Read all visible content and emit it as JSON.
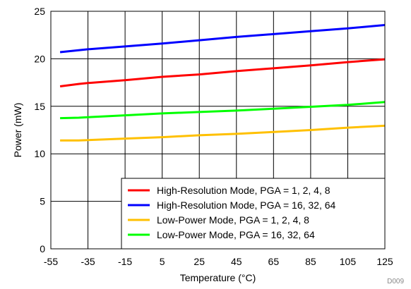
{
  "chart_data": {
    "type": "line",
    "title": "",
    "xlabel": "Temperature (°C)",
    "ylabel": "Power (mW)",
    "xlim": [
      -55,
      125
    ],
    "ylim": [
      0,
      25
    ],
    "x_ticks": [
      "-55",
      "-35",
      "-15",
      "5",
      "25",
      "45",
      "65",
      "85",
      "105",
      "125"
    ],
    "y_ticks": [
      "0",
      "5",
      "10",
      "15",
      "20",
      "25"
    ],
    "grid": true,
    "legend_position": "bottom-right",
    "figure_id": "D009",
    "series": [
      {
        "name": "High-Resolution Mode, PGA = 1, 2, 4, 8",
        "color": "#ff0000",
        "x": [
          -50,
          -40,
          -35,
          -15,
          5,
          25,
          45,
          65,
          85,
          105,
          125
        ],
        "y": [
          17.1,
          17.35,
          17.45,
          17.75,
          18.1,
          18.35,
          18.7,
          19.0,
          19.3,
          19.65,
          19.95
        ]
      },
      {
        "name": "High-Resolution Mode, PGA = 16, 32, 64",
        "color": "#0000ff",
        "x": [
          -50,
          -40,
          -35,
          -15,
          5,
          25,
          45,
          65,
          85,
          105,
          125
        ],
        "y": [
          20.7,
          20.9,
          21.0,
          21.3,
          21.6,
          21.95,
          22.3,
          22.6,
          22.9,
          23.2,
          23.55
        ]
      },
      {
        "name": "Low-Power Mode, PGA = 1, 2, 4, 8",
        "color": "#ffc000",
        "x": [
          -50,
          -40,
          -35,
          -15,
          5,
          25,
          45,
          65,
          85,
          105,
          125
        ],
        "y": [
          11.4,
          11.4,
          11.45,
          11.6,
          11.75,
          11.95,
          12.1,
          12.3,
          12.5,
          12.75,
          12.95
        ]
      },
      {
        "name": "Low-Power Mode, PGA = 16, 32, 64",
        "color": "#00ff00",
        "x": [
          -50,
          -40,
          -35,
          -15,
          5,
          25,
          45,
          65,
          85,
          105,
          125
        ],
        "y": [
          13.75,
          13.8,
          13.85,
          14.05,
          14.25,
          14.4,
          14.55,
          14.75,
          14.95,
          15.15,
          15.45
        ]
      }
    ]
  }
}
